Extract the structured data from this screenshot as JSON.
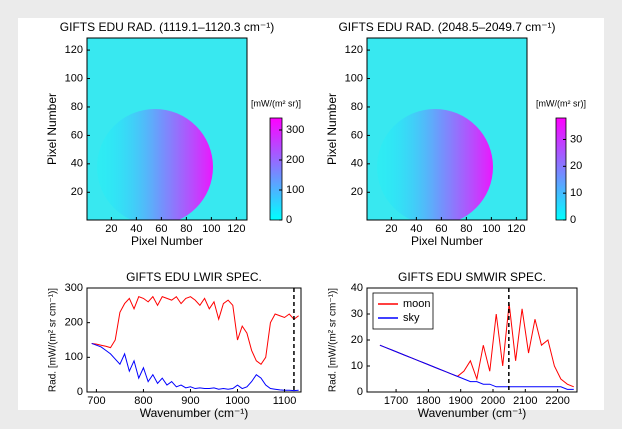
{
  "chart_data": [
    {
      "type": "image",
      "title": "GIFTS EDU RAD. (1119.1–1120.3 cm⁻¹)",
      "xlabel": "Pixel Number",
      "ylabel": "Pixel Number",
      "xlim": [
        0.5,
        128.5
      ],
      "ylim": [
        0.5,
        128.5
      ],
      "xticks": [
        20,
        40,
        60,
        80,
        100,
        120
      ],
      "yticks": [
        20,
        40,
        60,
        80,
        100,
        120
      ],
      "colormap": [
        "#00ffff",
        "#ff00ff"
      ],
      "colorbar": {
        "label": "[mW/(m² sr)]",
        "lim": [
          0,
          340
        ],
        "ticks": [
          0,
          100,
          200,
          300
        ]
      }
    },
    {
      "type": "image",
      "title": "GIFTS EDU RAD. (2048.5–2049.7 cm⁻¹)",
      "xlabel": "Pixel Number",
      "ylabel": "Pixel Number",
      "xlim": [
        0.5,
        128.5
      ],
      "ylim": [
        0.5,
        128.5
      ],
      "xticks": [
        20,
        40,
        60,
        80,
        100,
        120
      ],
      "yticks": [
        20,
        40,
        60,
        80,
        100,
        120
      ],
      "colormap": [
        "#00ffff",
        "#ff00ff"
      ],
      "colorbar": {
        "label": "[mW/(m² sr)]",
        "lim": [
          0,
          38
        ],
        "ticks": [
          0,
          10,
          20,
          30
        ]
      }
    },
    {
      "type": "line",
      "title": "GIFTS EDU LWIR SPEC.",
      "xlabel": "Wavenumber (cm⁻¹)",
      "ylabel": "Rad. [mW/(m² sr cm⁻¹)]",
      "xlim": [
        680,
        1135
      ],
      "ylim": [
        0,
        300
      ],
      "xticks": [
        700,
        800,
        900,
        1000,
        1100
      ],
      "yticks": [
        0,
        100,
        200,
        300
      ],
      "marker_x": 1120,
      "x": [
        690,
        700,
        710,
        720,
        730,
        740,
        750,
        760,
        770,
        780,
        790,
        800,
        810,
        820,
        830,
        840,
        850,
        860,
        870,
        880,
        890,
        900,
        910,
        920,
        930,
        940,
        950,
        960,
        970,
        980,
        990,
        1000,
        1010,
        1020,
        1030,
        1040,
        1050,
        1060,
        1070,
        1080,
        1090,
        1100,
        1110,
        1120,
        1130
      ],
      "series": [
        {
          "color": "#ff0000",
          "values": [
            140,
            138,
            135,
            132,
            128,
            150,
            230,
            255,
            270,
            240,
            275,
            270,
            260,
            275,
            250,
            275,
            270,
            265,
            275,
            255,
            270,
            275,
            265,
            250,
            270,
            240,
            260,
            210,
            255,
            265,
            250,
            150,
            190,
            170,
            120,
            90,
            80,
            100,
            200,
            225,
            220,
            215,
            225,
            210,
            220
          ]
        },
        {
          "color": "#0000ff",
          "values": [
            140,
            135,
            130,
            120,
            110,
            95,
            80,
            110,
            60,
            90,
            40,
            70,
            30,
            50,
            25,
            40,
            20,
            30,
            15,
            20,
            12,
            15,
            10,
            12,
            10,
            10,
            12,
            8,
            10,
            8,
            10,
            20,
            10,
            15,
            30,
            50,
            40,
            20,
            10,
            8,
            6,
            5,
            5,
            4,
            5
          ]
        }
      ]
    },
    {
      "type": "line",
      "title": "GIFTS EDU SMWIR SPEC.",
      "xlabel": "Wavenumber (cm⁻¹)",
      "ylabel": "Rad. [mW/(m² sr cm⁻¹)]",
      "xlim": [
        1610,
        2260
      ],
      "ylim": [
        0,
        40
      ],
      "xticks": [
        1700,
        1800,
        1900,
        2000,
        2100,
        2200
      ],
      "yticks": [
        0,
        10,
        20,
        30,
        40
      ],
      "marker_x": 2049,
      "legend": "upper left",
      "x": [
        1650,
        1670,
        1690,
        1710,
        1730,
        1750,
        1770,
        1790,
        1810,
        1830,
        1850,
        1870,
        1890,
        1910,
        1930,
        1950,
        1970,
        1990,
        2010,
        2030,
        2050,
        2070,
        2090,
        2110,
        2130,
        2150,
        2170,
        2190,
        2210,
        2230,
        2250
      ],
      "series": [
        {
          "name": "moon",
          "color": "#ff0000",
          "values": [
            18,
            17,
            16,
            15,
            14,
            13,
            12,
            11,
            10,
            9,
            8,
            7,
            6,
            8,
            12,
            5,
            18,
            8,
            30,
            10,
            34,
            12,
            32,
            15,
            28,
            18,
            20,
            10,
            5,
            3,
            2
          ]
        },
        {
          "name": "sky",
          "color": "#0000ff",
          "values": [
            18,
            17,
            16,
            15,
            14,
            13,
            12,
            11,
            10,
            9,
            8,
            7,
            6,
            5,
            4,
            4,
            3,
            3,
            2,
            2,
            2,
            2,
            2,
            2,
            2,
            2,
            2,
            2,
            2,
            1,
            1
          ]
        }
      ]
    }
  ]
}
